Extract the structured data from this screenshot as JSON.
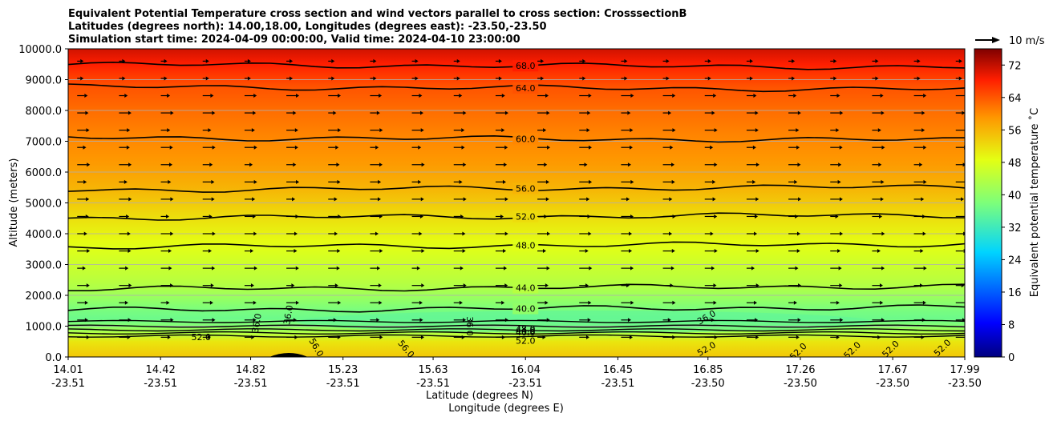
{
  "chart_data": {
    "type": "contour",
    "title_lines": [
      "Equivalent Potential Temperature cross section and wind vectors parallel to cross section: CrosssectionB",
      "Latitudes (degrees north): 14.00,18.00, Longitudes (degrees east): -23.50,-23.50",
      "Simulation start time: 2024-04-09 00:00:00, Valid time: 2024-04-10 23:00:00"
    ],
    "ylabel": "Altitude (meters)",
    "xlabel_lat": "Latitude (degrees N)",
    "xlabel_lon": "Longitude (degrees E)",
    "ylim": [
      0,
      10000
    ],
    "yticks": [
      "0.0",
      "1000.0",
      "2000.0",
      "3000.0",
      "4000.0",
      "5000.0",
      "6000.0",
      "7000.0",
      "8000.0",
      "9000.0",
      "10000.0"
    ],
    "xlim": [
      14.01,
      17.99
    ],
    "xticks": [
      {
        "lat": "14.01",
        "lon": "-23.51",
        "value": 14.01
      },
      {
        "lat": "14.42",
        "lon": "-23.51",
        "value": 14.42
      },
      {
        "lat": "14.82",
        "lon": "-23.51",
        "value": 14.82
      },
      {
        "lat": "15.23",
        "lon": "-23.51",
        "value": 15.23
      },
      {
        "lat": "15.63",
        "lon": "-23.51",
        "value": 15.63
      },
      {
        "lat": "16.04",
        "lon": "-23.51",
        "value": 16.04
      },
      {
        "lat": "16.45",
        "lon": "-23.51",
        "value": 16.45
      },
      {
        "lat": "16.85",
        "lon": "-23.50",
        "value": 16.85
      },
      {
        "lat": "17.26",
        "lon": "-23.50",
        "value": 17.26
      },
      {
        "lat": "17.67",
        "lon": "-23.50",
        "value": 17.67
      },
      {
        "lat": "17.99",
        "lon": "-23.50",
        "value": 17.99
      }
    ],
    "colorbar": {
      "label": "Equivalent potential temperature $^\\circ$C",
      "label_display": "Equivalent potential temperature ˚C",
      "min": 0,
      "max": 76,
      "ticks": [
        "0",
        "8",
        "16",
        "24",
        "32",
        "40",
        "48",
        "56",
        "64",
        "72"
      ]
    },
    "quiver_key": {
      "label": "10 m/s",
      "speed": 10
    },
    "contour_levels": [
      {
        "value": "68.0",
        "alt": 9450
      },
      {
        "value": "64.0",
        "alt": 8730
      },
      {
        "value": "60.0",
        "alt": 7080
      },
      {
        "value": "56.0",
        "alt": 5470
      },
      {
        "value": "52.0",
        "alt": 4560
      },
      {
        "value": "48.0",
        "alt": 3620
      },
      {
        "value": "44.0",
        "alt": 2250
      },
      {
        "value": "40.0",
        "alt": 1570
      }
    ],
    "lower_contour_labels": [
      "36.0",
      "36.0",
      "36.0",
      "36.0",
      "52.0",
      "52.0",
      "56.0",
      "56.0",
      "52.0",
      "52.0",
      "52.0",
      "52.0",
      "52.0",
      "48.0",
      "44.0",
      "40.0"
    ],
    "theta_profile": [
      {
        "alt": 0,
        "value": 54
      },
      {
        "alt": 500,
        "value": 51
      },
      {
        "alt": 900,
        "value": 40
      },
      {
        "alt": 1300,
        "value": 36
      },
      {
        "alt": 1700,
        "value": 39
      },
      {
        "alt": 2300,
        "value": 43.5
      },
      {
        "alt": 3000,
        "value": 46
      },
      {
        "alt": 3800,
        "value": 49
      },
      {
        "alt": 4600,
        "value": 52
      },
      {
        "alt": 5500,
        "value": 56
      },
      {
        "alt": 6300,
        "value": 58.5
      },
      {
        "alt": 7100,
        "value": 60
      },
      {
        "alt": 8000,
        "value": 62
      },
      {
        "alt": 8800,
        "value": 64
      },
      {
        "alt": 9500,
        "value": 68
      },
      {
        "alt": 10000,
        "value": 71
      }
    ]
  }
}
